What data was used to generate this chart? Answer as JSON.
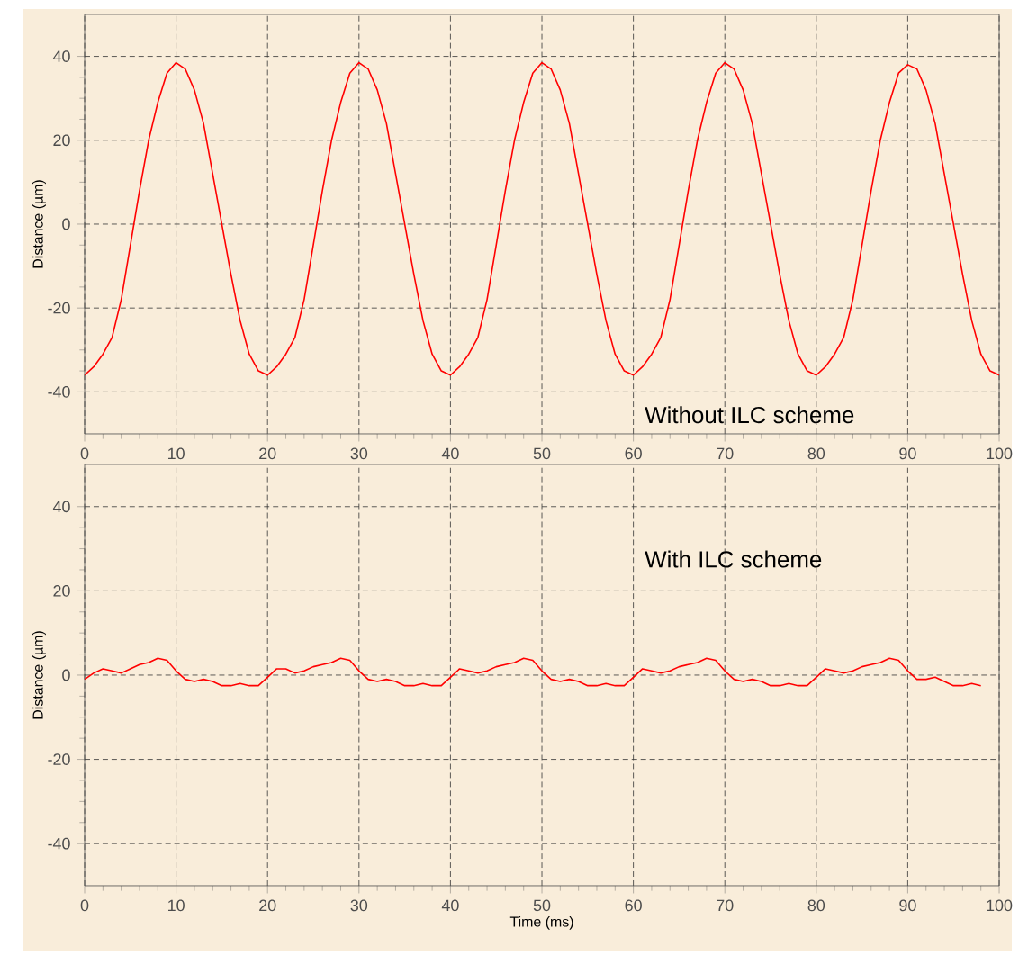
{
  "chart_data": [
    {
      "type": "line",
      "ylabel": "Distance (µm)",
      "annotations": [
        "Without ILC scheme"
      ],
      "xlim": [
        0,
        100
      ],
      "ylim": [
        -50,
        50
      ],
      "xticks": [
        0,
        10,
        20,
        30,
        40,
        50,
        60,
        70,
        80,
        90,
        100
      ],
      "yticks": [
        -40,
        -20,
        0,
        20,
        40
      ],
      "grid": true,
      "marker": "none",
      "line_style": "solid",
      "x": [
        0,
        1,
        2,
        3,
        4,
        5,
        6,
        7,
        8,
        9,
        10,
        11,
        12,
        13,
        14,
        15,
        16,
        17,
        18,
        19,
        20,
        21,
        22,
        23,
        24,
        25,
        26,
        27,
        28,
        29,
        30,
        31,
        32,
        33,
        34,
        35,
        36,
        37,
        38,
        39,
        40,
        41,
        42,
        43,
        44,
        45,
        46,
        47,
        48,
        49,
        50,
        51,
        52,
        53,
        54,
        55,
        56,
        57,
        58,
        59,
        60,
        61,
        62,
        63,
        64,
        65,
        66,
        67,
        68,
        69,
        70,
        71,
        72,
        73,
        74,
        75,
        76,
        77,
        78,
        79,
        80,
        81,
        82,
        83,
        84,
        85,
        86,
        87,
        88,
        89,
        90,
        91,
        92,
        93,
        94,
        95,
        96,
        97,
        98,
        99,
        100
      ],
      "series": [
        {
          "color": "#ff0000",
          "values": [
            -36,
            -34,
            -31,
            -27,
            -18,
            -5,
            8,
            20,
            29,
            36,
            38.5,
            37,
            32,
            24,
            12,
            0,
            -12,
            -23,
            -31,
            -35,
            -36,
            -34,
            -31,
            -27,
            -18,
            -5,
            8,
            20,
            29,
            36,
            38.5,
            37,
            32,
            24,
            12,
            0,
            -12,
            -23,
            -31,
            -35,
            -36,
            -34,
            -31,
            -27,
            -18,
            -5,
            8,
            20,
            29,
            36,
            38.5,
            37,
            32,
            24,
            12,
            0,
            -12,
            -23,
            -31,
            -35,
            -36,
            -34,
            -31,
            -27,
            -18,
            -5,
            8,
            20,
            29,
            36,
            38.5,
            37,
            32,
            24,
            12,
            0,
            -12,
            -23,
            -31,
            -35,
            -36,
            -34,
            -31,
            -27,
            -18,
            -5,
            8,
            20,
            29,
            36,
            38,
            37,
            32,
            24,
            12,
            0,
            -12,
            -23,
            -31,
            -35,
            -36
          ]
        }
      ]
    },
    {
      "type": "line",
      "xlabel": "Time (ms)",
      "ylabel": "Distance (µm)",
      "annotations": [
        "With ILC scheme"
      ],
      "xlim": [
        0,
        100
      ],
      "ylim": [
        -50,
        50
      ],
      "xticks": [
        0,
        10,
        20,
        30,
        40,
        50,
        60,
        70,
        80,
        90,
        100
      ],
      "yticks": [
        -40,
        -20,
        0,
        20,
        40
      ],
      "grid": true,
      "marker": "none",
      "line_style": "solid",
      "x": [
        0,
        1,
        2,
        3,
        4,
        5,
        6,
        7,
        8,
        9,
        10,
        11,
        12,
        13,
        14,
        15,
        16,
        17,
        18,
        19,
        20,
        21,
        22,
        23,
        24,
        25,
        26,
        27,
        28,
        29,
        30,
        31,
        32,
        33,
        34,
        35,
        36,
        37,
        38,
        39,
        40,
        41,
        42,
        43,
        44,
        45,
        46,
        47,
        48,
        49,
        50,
        51,
        52,
        53,
        54,
        55,
        56,
        57,
        58,
        59,
        60,
        61,
        62,
        63,
        64,
        65,
        66,
        67,
        68,
        69,
        70,
        71,
        72,
        73,
        74,
        75,
        76,
        77,
        78,
        79,
        80,
        81,
        82,
        83,
        84,
        85,
        86,
        87,
        88,
        89,
        90,
        91,
        92,
        93,
        94,
        95,
        96,
        97,
        98
      ],
      "series": [
        {
          "color": "#ff0000",
          "values": [
            -1,
            0.5,
            1.5,
            1,
            0.5,
            1.5,
            2.5,
            3,
            4,
            3.5,
            1,
            -1,
            -1.5,
            -1,
            -1.5,
            -2.5,
            -2.5,
            -2,
            -2.5,
            -2.5,
            -0.5,
            1.5,
            1.5,
            0.5,
            1,
            2,
            2.5,
            3,
            4,
            3.5,
            1,
            -1,
            -1.5,
            -1,
            -1.5,
            -2.5,
            -2.5,
            -2,
            -2.5,
            -2.5,
            -0.5,
            1.5,
            1,
            0.5,
            1,
            2,
            2.5,
            3,
            4,
            3.5,
            1,
            -1,
            -1.5,
            -1,
            -1.5,
            -2.5,
            -2.5,
            -2,
            -2.5,
            -2.5,
            -0.5,
            1.5,
            1,
            0.5,
            1,
            2,
            2.5,
            3,
            4,
            3.5,
            1,
            -1,
            -1.5,
            -1,
            -1.5,
            -2.5,
            -2.5,
            -2,
            -2.5,
            -2.5,
            -0.5,
            1.5,
            1,
            0.5,
            1,
            2,
            2.5,
            3,
            4,
            3.5,
            1,
            -1,
            -1,
            -0.5,
            -1.5,
            -2.5,
            -2.5,
            -2,
            -2.5
          ]
        }
      ]
    }
  ]
}
